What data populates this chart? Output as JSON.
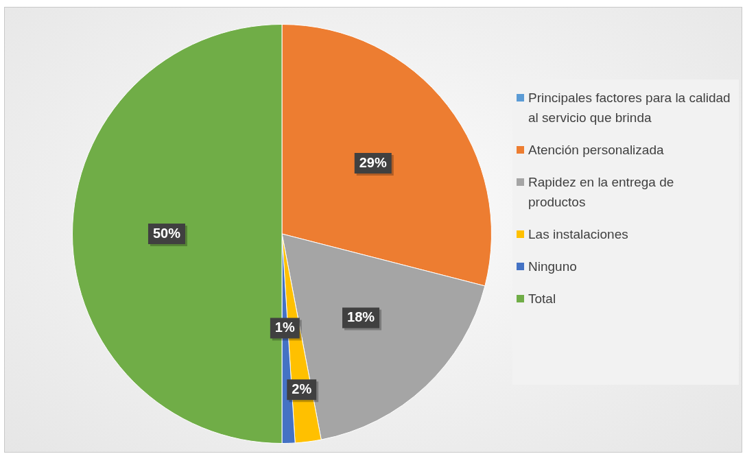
{
  "chart_data": {
    "type": "pie",
    "categories": [
      "Principales factores para la calidad al servicio  que brinda",
      "Atención personalizada",
      "Rapidez en la entrega de productos",
      "Las instalaciones",
      "Ninguno",
      "Total"
    ],
    "values": [
      0,
      29,
      18,
      2,
      1,
      50
    ],
    "colors": [
      "#5b9bd5",
      "#ed7d31",
      "#a5a5a5",
      "#ffc000",
      "#4472c4",
      "#70ad47"
    ],
    "value_labels": [
      null,
      "29%",
      "18%",
      "2%",
      "1%",
      "50%"
    ],
    "legend": "right"
  }
}
